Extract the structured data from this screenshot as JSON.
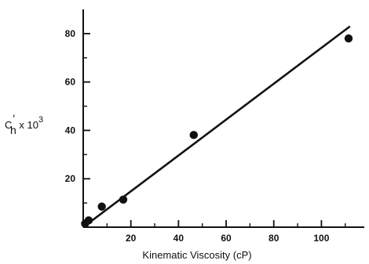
{
  "chart_data": {
    "type": "scatter",
    "xlabel": "Kinematic Viscosity (cP)",
    "ylabel": {
      "main": "C",
      "prime": "′",
      "subscript": "h",
      "suffix": " x 10",
      "superscript": "3"
    },
    "xlim": [
      0,
      118
    ],
    "ylim": [
      0,
      90
    ],
    "xticks": [
      {
        "value": 20,
        "label": "20"
      },
      {
        "value": 40,
        "label": "40"
      },
      {
        "value": 60,
        "label": "60"
      },
      {
        "value": 80,
        "label": "80"
      },
      {
        "value": 100,
        "label": "100"
      }
    ],
    "yticks": [
      {
        "value": 20,
        "label": "20"
      },
      {
        "value": 40,
        "label": "40"
      },
      {
        "value": 60,
        "label": "60"
      },
      {
        "value": 80,
        "label": "80"
      }
    ],
    "xminor": [
      10,
      30,
      50,
      70,
      90,
      110
    ],
    "yminor": [
      10,
      30,
      50,
      70
    ],
    "points": [
      {
        "x": 0.8,
        "y": 1.5
      },
      {
        "x": 2.3,
        "y": 2.8
      },
      {
        "x": 7.8,
        "y": 8.5
      },
      {
        "x": 16.8,
        "y": 11.4
      },
      {
        "x": 46.4,
        "y": 38.1
      },
      {
        "x": 111.4,
        "y": 78.0
      }
    ],
    "fit_line": [
      {
        "x": 0,
        "y": 0
      },
      {
        "x": 112,
        "y": 83
      }
    ],
    "grid": false,
    "colors": {
      "ink": "#111111",
      "background": "#ffffff"
    }
  }
}
